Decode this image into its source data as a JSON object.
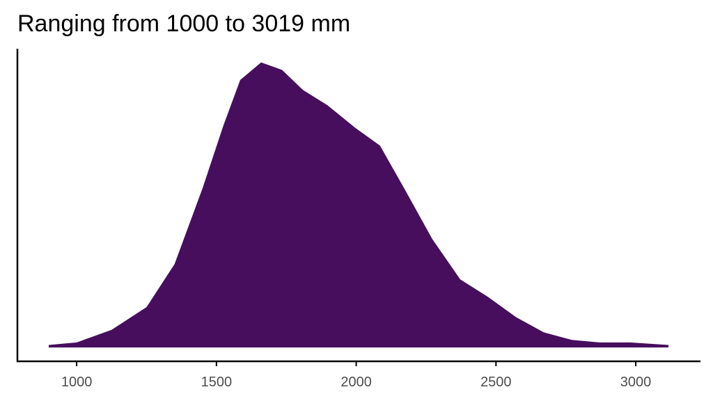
{
  "chart_data": {
    "type": "density",
    "title": "Ranging from 1000 to 3019 mm",
    "x": [
      900,
      1000,
      1125,
      1250,
      1350,
      1450,
      1525,
      1585,
      1660,
      1735,
      1810,
      1897,
      1997,
      2085,
      2172,
      2272,
      2372,
      2472,
      2572,
      2671,
      2771,
      2871,
      2980,
      3117
    ],
    "values": [
      1e-05,
      2e-05,
      7e-05,
      0.00016,
      0.00033,
      0.00063,
      0.00088,
      0.00106,
      0.00113,
      0.0011,
      0.00102,
      0.00096,
      0.00087,
      0.0008,
      0.00063,
      0.00043,
      0.00027,
      0.0002,
      0.00012,
      6e-05,
      3e-05,
      2e-05,
      2e-05,
      1e-05
    ],
    "color": "#460e5c",
    "xlim": [
      788,
      3229
    ],
    "xticks": [
      1000,
      1500,
      2000,
      2500,
      3000
    ],
    "ylim": [
      -5.5e-05,
      0.001184
    ]
  }
}
